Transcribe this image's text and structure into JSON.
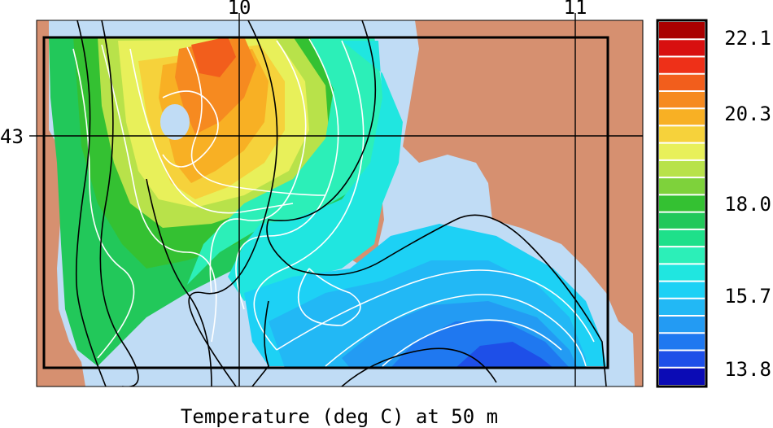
{
  "chart_data": {
    "type": "heatmap",
    "title": "Temperature (deg C) at 50 m",
    "xlabel": "",
    "ylabel": "",
    "x_ticks": [
      {
        "value": 10,
        "label": "10"
      },
      {
        "value": 11,
        "label": "11"
      }
    ],
    "y_ticks": [
      {
        "value": 43,
        "label": "43"
      }
    ],
    "grid": "lon/lat lines at ticks",
    "colorbar": {
      "min": 13.8,
      "max": 22.1,
      "labels": [
        {
          "value": 22.1,
          "label": "22.1"
        },
        {
          "value": 20.3,
          "label": "20.3"
        },
        {
          "value": 18.0,
          "label": "18.0"
        },
        {
          "value": 15.7,
          "label": "15.7"
        },
        {
          "value": 13.8,
          "label": "13.8"
        }
      ],
      "colors": [
        "#0b0bb5",
        "#1e4fe8",
        "#1f78f0",
        "#239bf3",
        "#22b8f5",
        "#1dd1f5",
        "#20e6e0",
        "#2cefb8",
        "#1ee08a",
        "#22c85a",
        "#34c132",
        "#7ed23b",
        "#b8e24a",
        "#e8f05a",
        "#f6d23b",
        "#f8b024",
        "#f68a20",
        "#f25e1c",
        "#ee3018",
        "#d81010",
        "#aa0000"
      ]
    },
    "land_color": "#d69070",
    "shelf_color": "#c0dcf5",
    "regions": [
      {
        "name": "warm core",
        "approx_value": 20.5
      },
      {
        "name": "northwest shelf",
        "approx_value": 18.5
      },
      {
        "name": "southeast basin",
        "approx_value": 14.5
      }
    ]
  }
}
